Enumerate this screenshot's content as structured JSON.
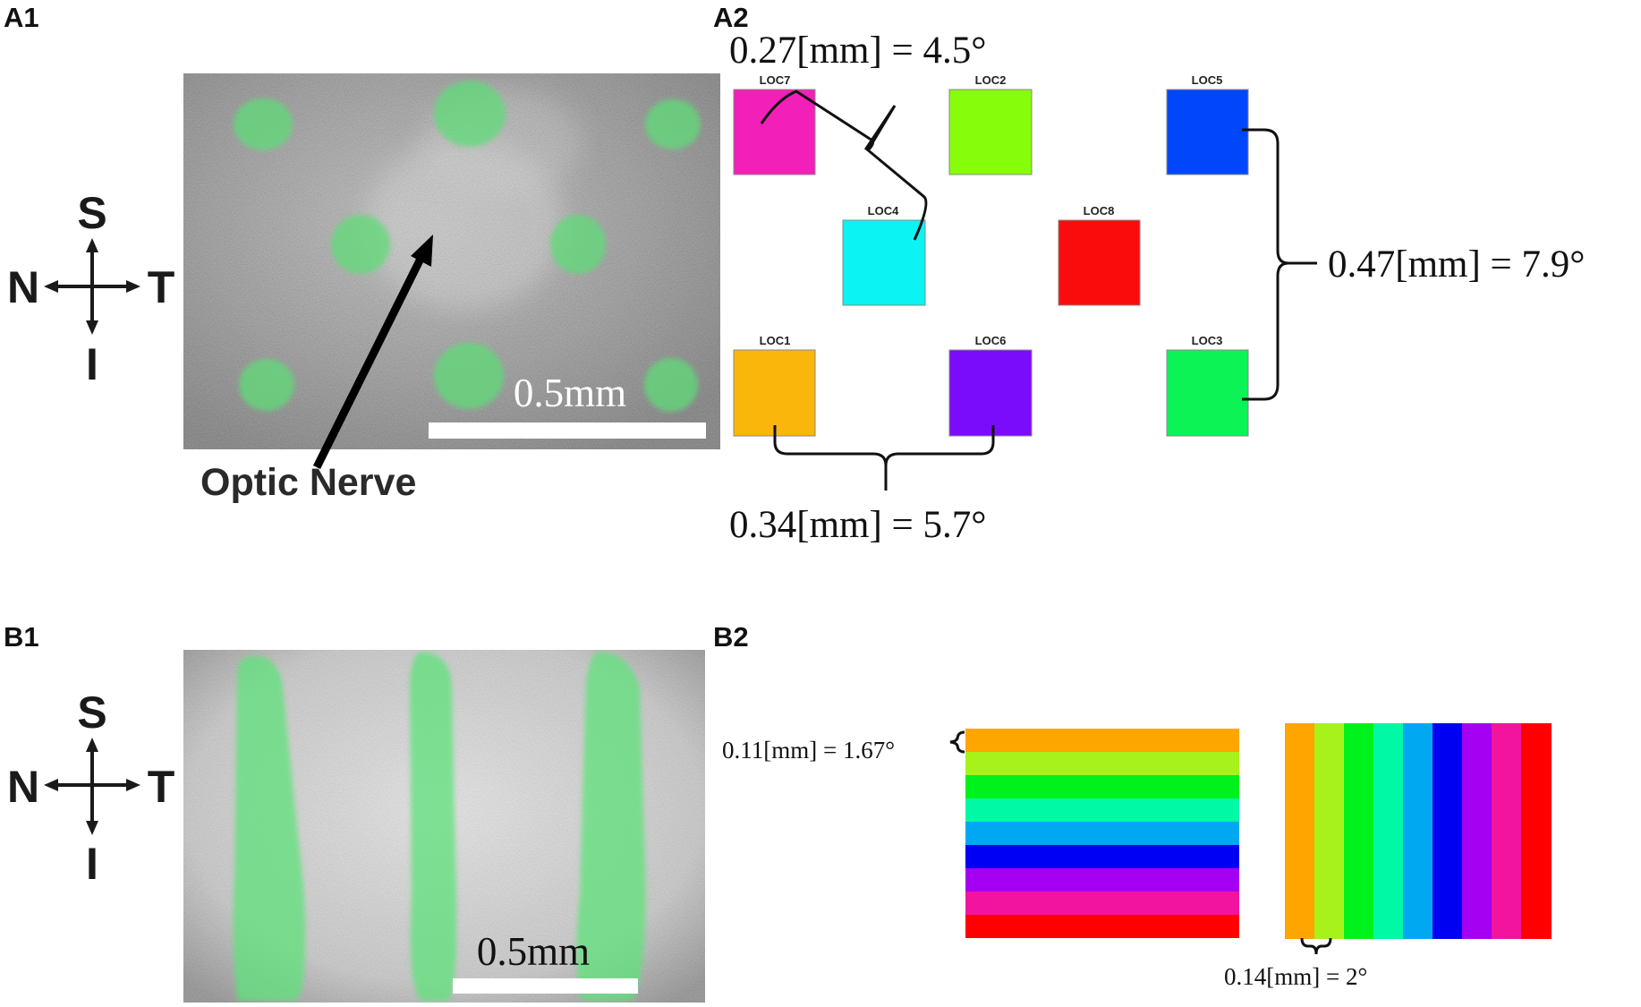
{
  "panels": {
    "a1": "A1",
    "a2": "A2",
    "b1": "B1",
    "b2": "B2"
  },
  "compass": {
    "superior": "S",
    "inferior": "I",
    "nasal": "N",
    "temporal": "T"
  },
  "a1": {
    "scale_bar": "0.5mm",
    "optic_nerve_label": "Optic Nerve"
  },
  "a2": {
    "locations": [
      {
        "label": "LOC7",
        "color": "#f21fb9"
      },
      {
        "label": "LOC2",
        "color": "#86fd0b"
      },
      {
        "label": "LOC5",
        "color": "#0047fb"
      },
      {
        "label": "LOC4",
        "color": "#0cf3f3"
      },
      {
        "label": "LOC8",
        "color": "#fb0c0c"
      },
      {
        "label": "LOC1",
        "color": "#fbb60b"
      },
      {
        "label": "LOC6",
        "color": "#7b0cfb"
      },
      {
        "label": "LOC3",
        "color": "#0cf356"
      }
    ],
    "diag_label": "0.27[mm] = 4.5°",
    "vert_label": "0.47[mm] = 7.9°",
    "horiz_label": "0.34[mm] = 5.7°"
  },
  "b1": {
    "scale_bar": "0.5mm"
  },
  "b2": {
    "bar_colors": [
      "#ffa500",
      "#a8f21c",
      "#00f21c",
      "#00f9a5",
      "#00a8f2",
      "#0000f2",
      "#a500f2",
      "#f2149f",
      "#ff0000"
    ],
    "bar_width_label": "0.11[mm] = 1.67°",
    "stripe_width_label": "0.14[mm] = 2°"
  }
}
